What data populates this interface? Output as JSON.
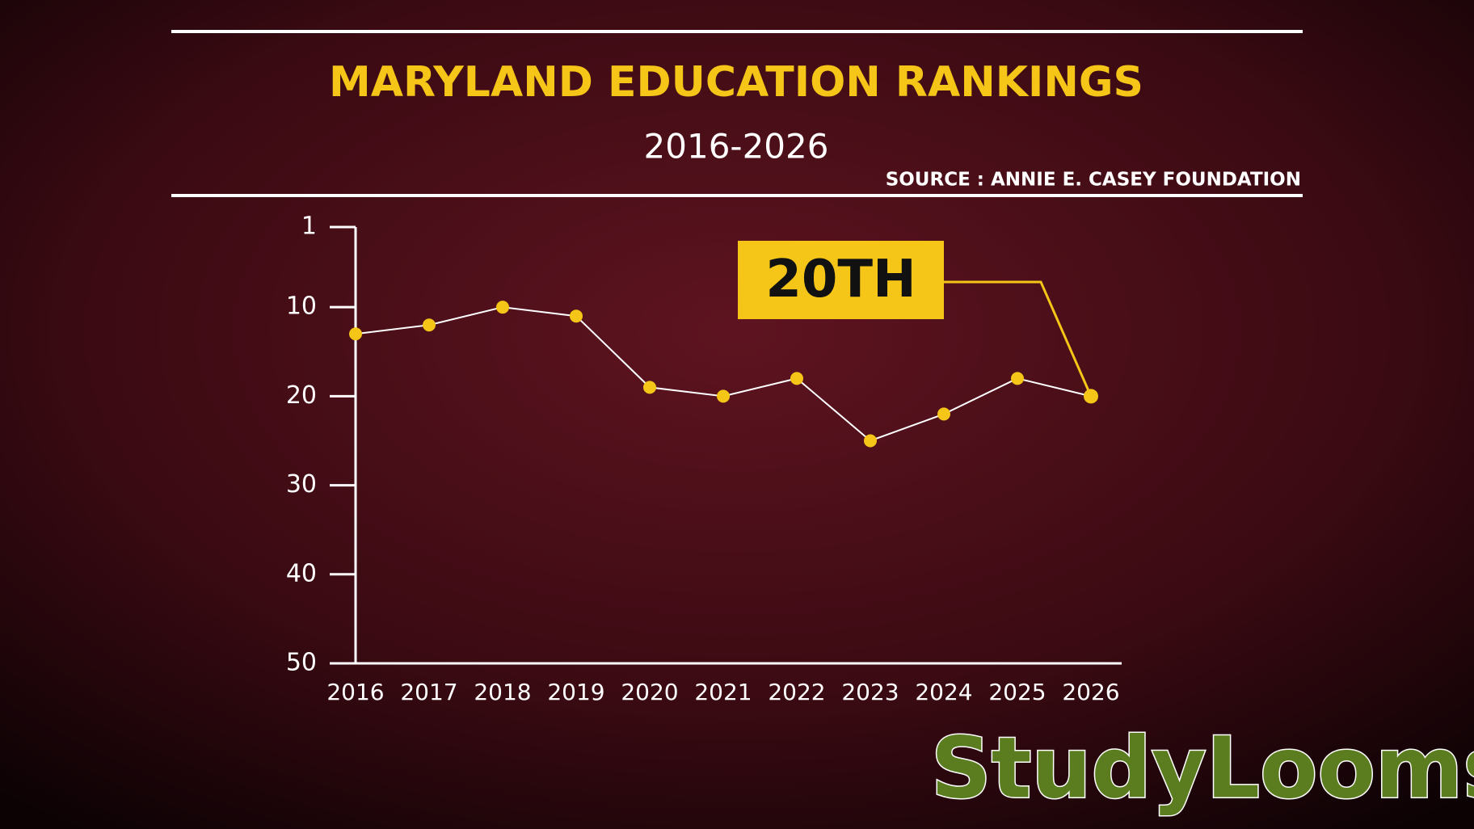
{
  "chart_data": {
    "type": "line",
    "title": "MARYLAND EDUCATION RANKINGS",
    "subtitle": "2016-2026",
    "source": "SOURCE : ANNIE E. CASEY FOUNDATION",
    "categories": [
      "2016",
      "2017",
      "2018",
      "2019",
      "2020",
      "2021",
      "2022",
      "2023",
      "2024",
      "2025",
      "2026"
    ],
    "values": [
      13,
      12,
      10,
      11,
      19,
      20,
      18,
      25,
      22,
      18,
      20
    ],
    "color": "#f5c518",
    "ylim": [
      1,
      50
    ],
    "y_inverted": true,
    "yticks": [
      1,
      10,
      20,
      30,
      40,
      50
    ],
    "annotation": "20TH"
  },
  "watermark": "StudyLooms"
}
